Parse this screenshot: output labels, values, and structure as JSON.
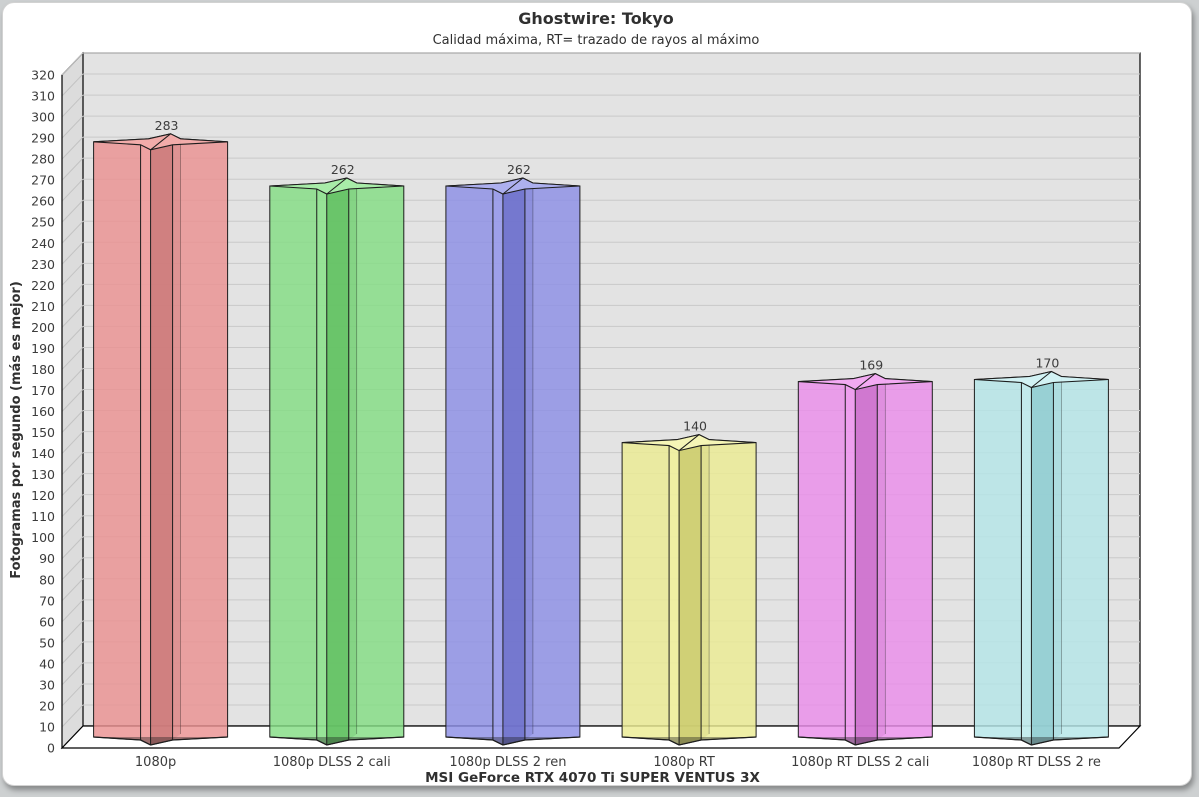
{
  "page": {
    "background": "#cdd0d1",
    "card_background": "#ffffff"
  },
  "header": {
    "title": "Ghostwire: Tokyo",
    "subtitle": "Calidad máxima, RT= trazado de rayos al máximo"
  },
  "chart_data": {
    "type": "bar",
    "style": "3d-star-columns",
    "title": "Ghostwire: Tokyo",
    "subtitle": "Calidad máxima, RT= trazado de rayos al máximo",
    "categories": [
      "1080p",
      "1080p DLSS 2 cali",
      "1080p DLSS 2 ren",
      "1080p RT",
      "1080p RT DLSS 2 cali",
      "1080p RT DLSS 2 re"
    ],
    "values": [
      283,
      262,
      262,
      140,
      169,
      170
    ],
    "value_labels": [
      "283",
      "262",
      "262",
      "140",
      "169",
      "170"
    ],
    "xlabel": "MSI GeForce RTX 4070 Ti SUPER VENTUS 3X",
    "ylabel": "Fotogramas por segundo (más es mejor)",
    "ylim": [
      0,
      320
    ],
    "ytick_step": 10,
    "grid": true,
    "legend": false,
    "bar_colors": [
      {
        "name": "red",
        "body": "#EA9191",
        "band": "#F2A4A4",
        "dark": "#C97878",
        "top": "#F2ADAB"
      },
      {
        "name": "green",
        "body": "#84DD84",
        "band": "#97E697",
        "dark": "#5FBE5F",
        "top": "#A9ECA9"
      },
      {
        "name": "blue",
        "body": "#8C8FE5",
        "band": "#A0A3EE",
        "dark": "#6B6EC9",
        "top": "#AEB1EF"
      },
      {
        "name": "yellow",
        "body": "#ECEC93",
        "band": "#F3F3A6",
        "dark": "#C9C96C",
        "top": "#F6F6B7"
      },
      {
        "name": "magenta",
        "body": "#EA8DEA",
        "band": "#F2A0F2",
        "dark": "#C96FC9",
        "top": "#F3ABF3"
      },
      {
        "name": "cyan",
        "body": "#B5E5E8",
        "band": "#C8EFF1",
        "dark": "#8FCBCF",
        "top": "#D3F2F4"
      }
    ],
    "frame_colors": {
      "back_wall": "#e3e3e3",
      "left_wall": "#dcdcdc",
      "floor": "#ffffff",
      "gridline": "#c9c9c9",
      "wall_hatch": "#c3c3c3",
      "frame_line": "#000000",
      "text": "#3c3c3c",
      "bar_outline": "#1d1d1d"
    }
  }
}
